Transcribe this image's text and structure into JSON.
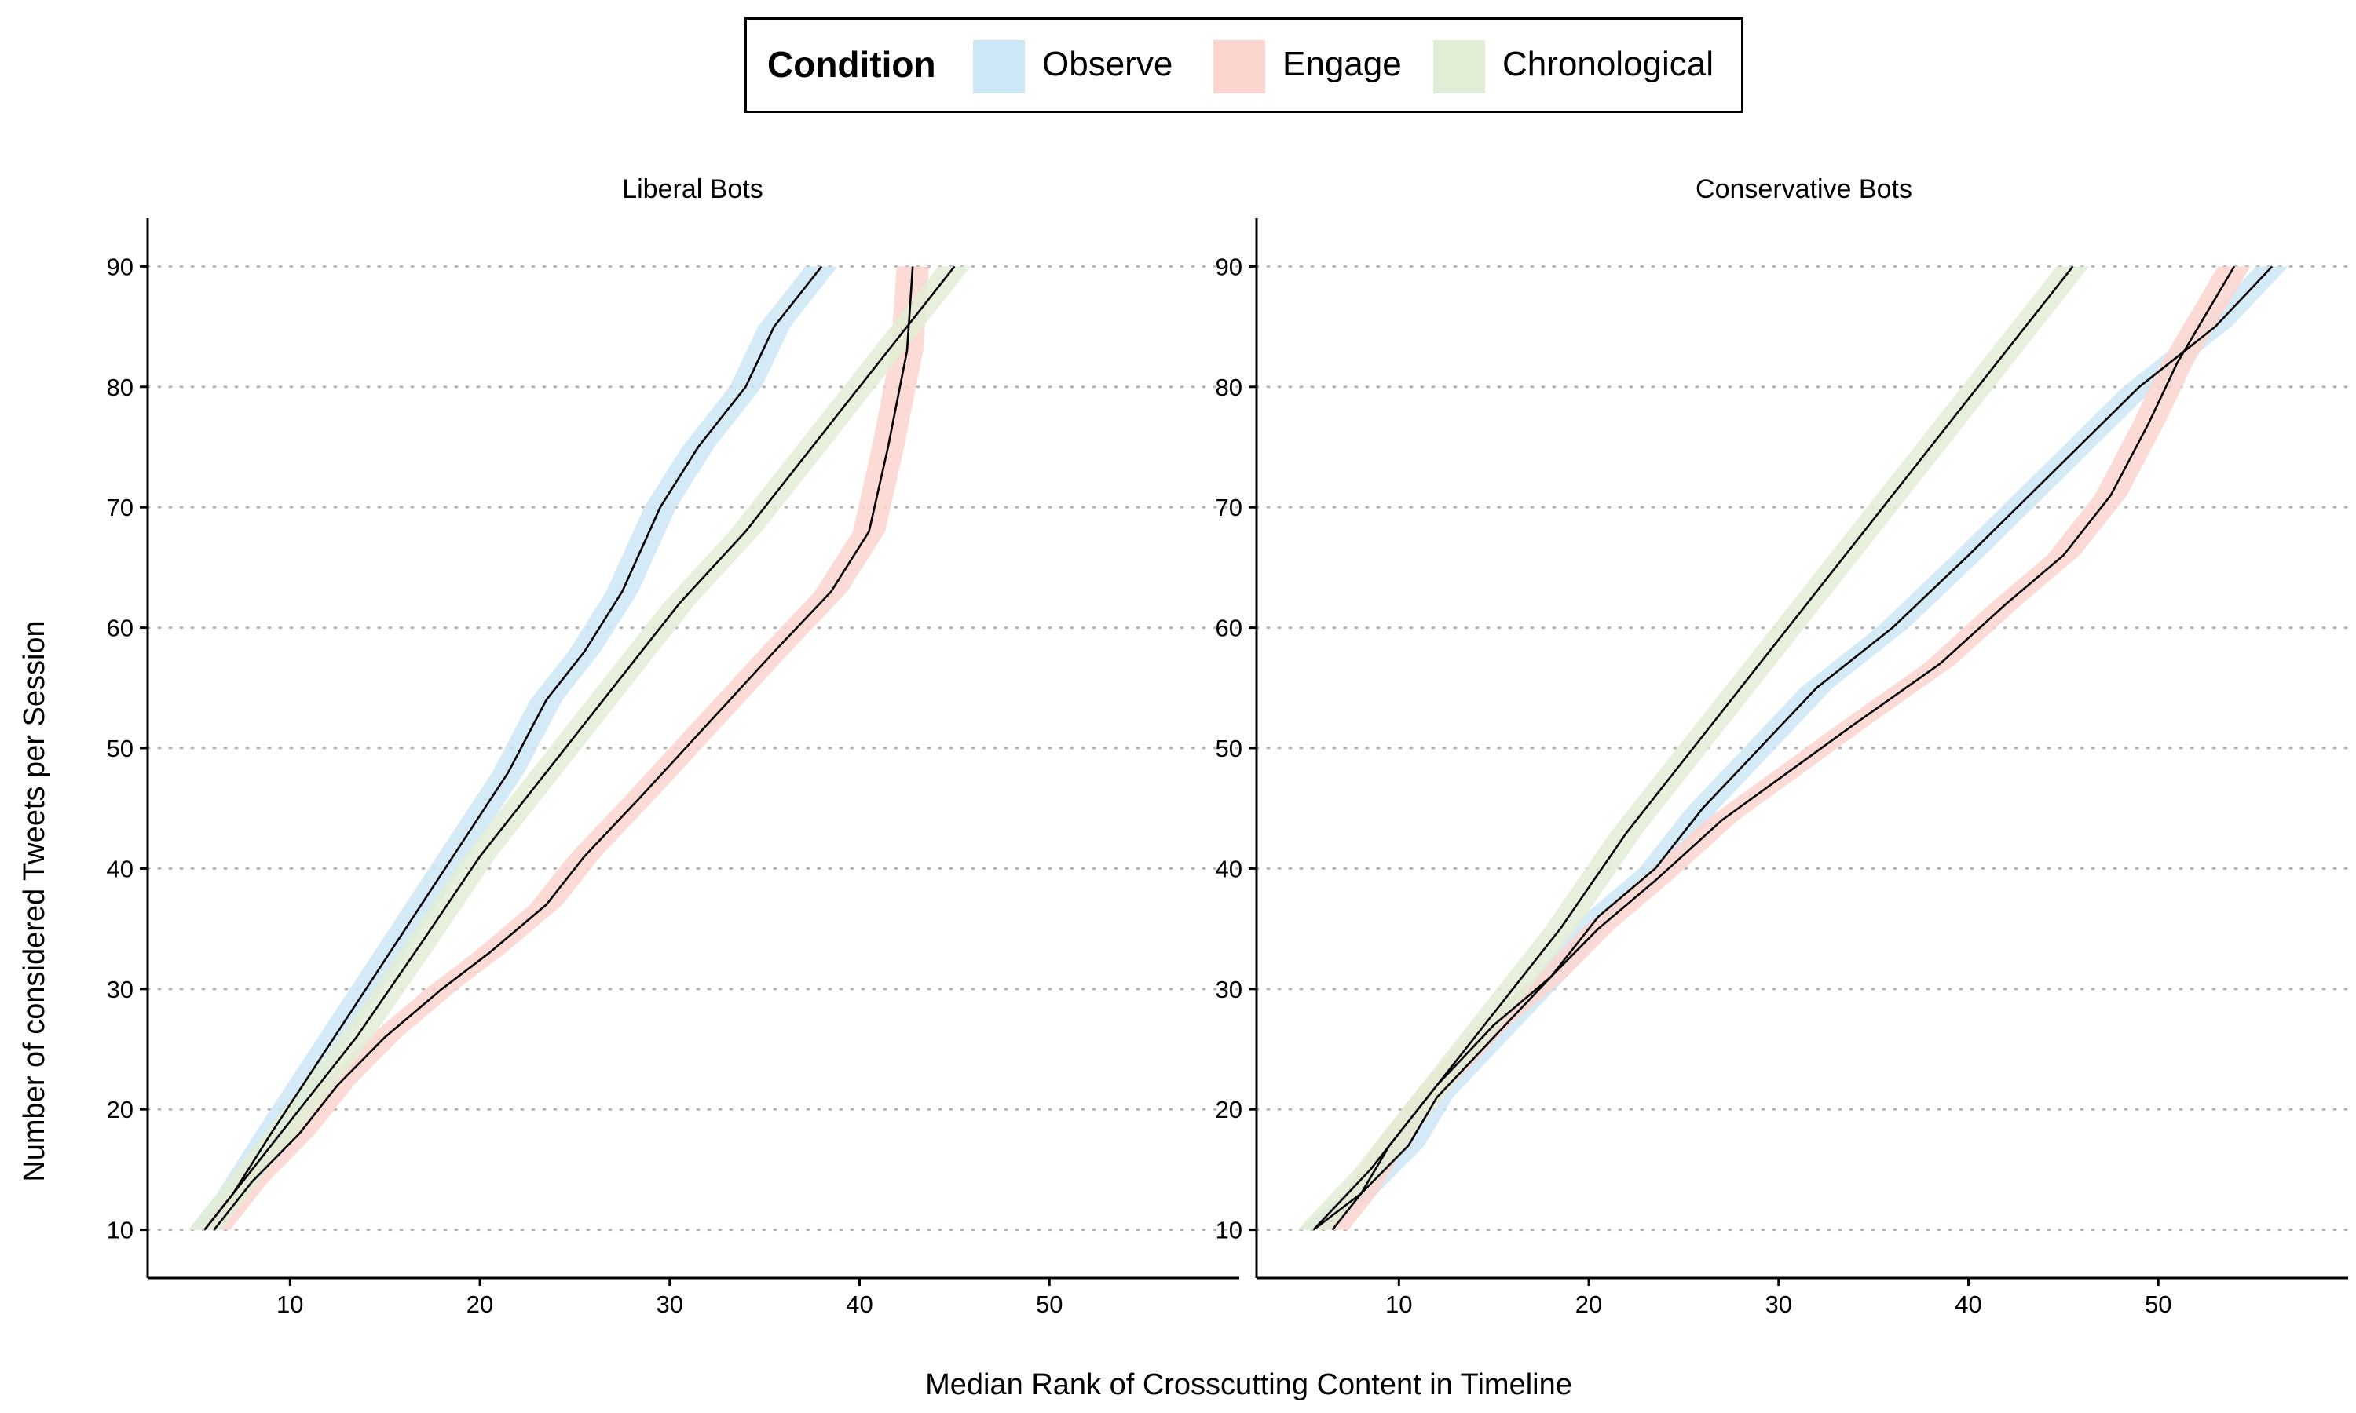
{
  "legend": {
    "title": "Condition",
    "items": [
      {
        "label": "Observe",
        "color": "#cce8f6"
      },
      {
        "label": "Engage",
        "color": "#fcd5cf"
      },
      {
        "label": "Chronological",
        "color": "#e2edd6"
      }
    ]
  },
  "chart_data": {
    "type": "line",
    "xlabel": "Median Rank of Crosscutting Content in Timeline",
    "ylabel": "Number of considered Tweets per Session",
    "xlim": [
      2.5,
      60
    ],
    "ylim": [
      6,
      94
    ],
    "xticks": [
      10,
      20,
      30,
      40,
      50
    ],
    "yticks": [
      10,
      20,
      30,
      40,
      50,
      60,
      70,
      80,
      90
    ],
    "y_gridlines": "dotted",
    "ribbon_halfwidth_x": 0.85,
    "panels": [
      {
        "title": "Liberal Bots",
        "series": [
          {
            "name": "Observe",
            "color": "#cce8f6",
            "x": [
              5.5,
              7,
              9,
              11.5,
              14,
              16.5,
              19,
              21.5,
              23.5,
              25.5,
              27.5,
              29.5,
              31.5,
              34,
              35.5,
              38
            ],
            "y": [
              10,
              13,
              18,
              24,
              30,
              36,
              42,
              48,
              54,
              58,
              63,
              70,
              75,
              80,
              85,
              90
            ]
          },
          {
            "name": "Engage",
            "color": "#fcd5cf",
            "x": [
              6,
              8,
              10.5,
              12.5,
              15,
              18,
              20.5,
              23.5,
              25.5,
              28.5,
              32,
              35.5,
              38.5,
              40.5,
              41.5,
              42.5,
              42.8
            ],
            "y": [
              10,
              14,
              18,
              22,
              26,
              30,
              33,
              37,
              41,
              46,
              52,
              58,
              63,
              68,
              75,
              83,
              90
            ]
          },
          {
            "name": "Chronological",
            "color": "#e2edd6",
            "x": [
              5.5,
              8,
              10.5,
              13.5,
              17,
              20,
              23.5,
              27,
              30.5,
              34,
              36.5,
              39.5,
              42.5,
              45
            ],
            "y": [
              10,
              15,
              20,
              26,
              34,
              41,
              48,
              55,
              62,
              68,
              73,
              79,
              85,
              90
            ]
          }
        ]
      },
      {
        "title": "Conservative Bots",
        "series": [
          {
            "name": "Observe",
            "color": "#cce8f6",
            "x": [
              5.5,
              8,
              10.5,
              12,
              15,
              18,
              20.5,
              23.5,
              26,
              29,
              32,
              36,
              40,
              44.5,
              49,
              53,
              56
            ],
            "y": [
              10,
              13,
              17,
              21,
              26,
              31,
              36,
              40,
              45,
              50,
              55,
              60,
              66,
              73,
              80,
              85,
              90
            ]
          },
          {
            "name": "Engage",
            "color": "#fcd5cf",
            "x": [
              6.5,
              8,
              9.5,
              12,
              15,
              18,
              20.5,
              23.5,
              27,
              30.5,
              34,
              38.5,
              42,
              45,
              47.5,
              49.5,
              51,
              52.5,
              54
            ],
            "y": [
              10,
              13,
              17,
              22,
              27,
              31,
              35,
              39,
              44,
              48,
              52,
              57,
              62,
              66,
              71,
              77,
              82,
              86,
              90
            ]
          },
          {
            "name": "Chronological",
            "color": "#e2edd6",
            "x": [
              5.5,
              8.5,
              11.5,
              15,
              18.5,
              22,
              25.5,
              29,
              32.5,
              36.5,
              40.5,
              45.5
            ],
            "y": [
              10,
              15,
              21,
              28,
              35,
              43,
              50,
              57,
              64,
              72,
              80,
              90
            ]
          }
        ]
      }
    ]
  }
}
